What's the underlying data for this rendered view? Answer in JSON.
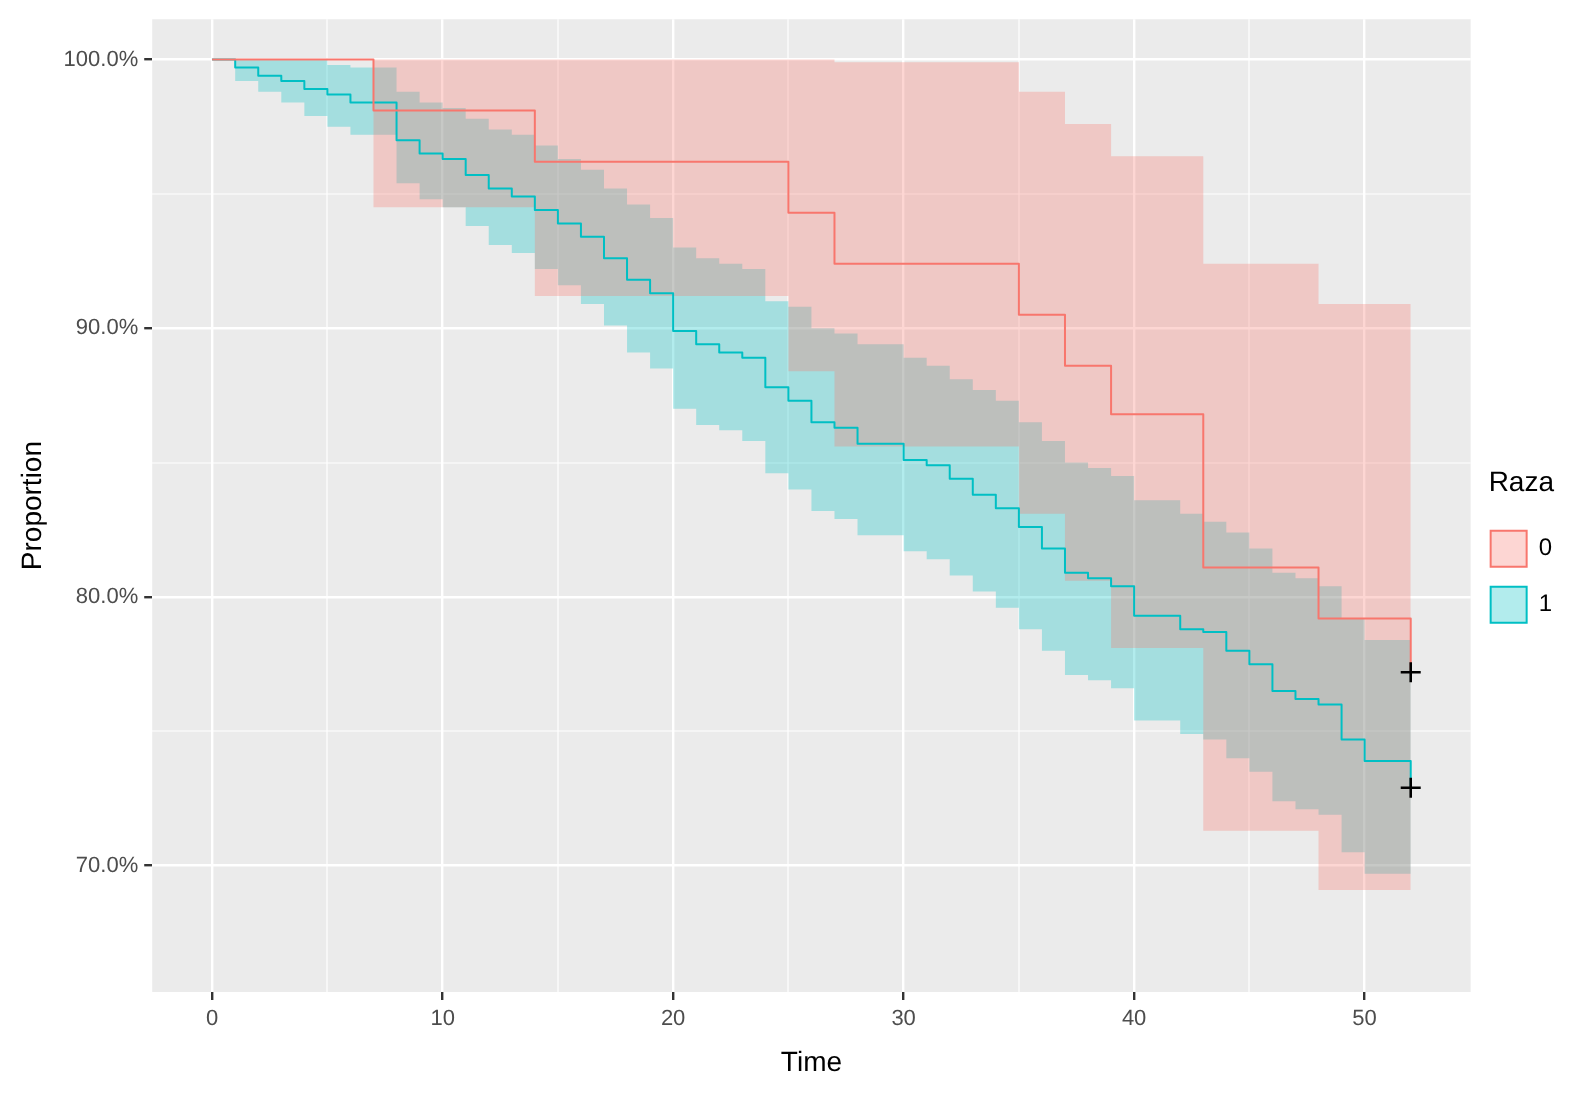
{
  "chart_data": {
    "type": "step",
    "xlabel": "Time",
    "ylabel": "Proportion",
    "legend_title": "Raza",
    "legend": "right",
    "grid": true,
    "xlim": [
      -2.6,
      54.6
    ],
    "ylim": [
      65.3,
      101.5
    ],
    "xticks": [
      0,
      {
        "value": 5,
        "label": null
      },
      10,
      {
        "value": 15,
        "label": null
      },
      20,
      {
        "value": 25,
        "label": null
      },
      30,
      {
        "value": 35,
        "label": null
      },
      40,
      {
        "value": 45,
        "label": null
      },
      50
    ],
    "yticks": [
      {
        "value": 70,
        "label": "70.0%"
      },
      {
        "value": 75,
        "label": null
      },
      {
        "value": 80,
        "label": "80.0%"
      },
      {
        "value": 85,
        "label": null
      },
      {
        "value": 90,
        "label": "90.0%"
      },
      {
        "value": 95,
        "label": null
      },
      {
        "value": 100,
        "label": "100.0%"
      }
    ],
    "series": [
      {
        "name": "0",
        "color": "#f8766d",
        "x": [
          0,
          7,
          14,
          25,
          27,
          35,
          37,
          39,
          43,
          48,
          52
        ],
        "values": [
          100,
          98.1,
          96.2,
          94.3,
          92.4,
          90.5,
          88.6,
          86.8,
          81.1,
          79.2,
          77.2
        ],
        "lower": [
          100,
          94.5,
          91.2,
          88.4,
          85.6,
          83.1,
          80.6,
          78.1,
          71.3,
          69.1,
          69.1
        ],
        "upper": [
          100,
          100,
          100,
          100,
          99.9,
          98.8,
          97.6,
          96.4,
          92.4,
          90.9,
          90.9
        ]
      },
      {
        "name": "1",
        "color": "#00bfc4",
        "x": [
          0,
          1,
          2,
          3,
          4,
          5,
          6,
          8,
          9,
          10,
          11,
          12,
          13,
          14,
          15,
          16,
          17,
          18,
          19,
          20,
          21,
          22,
          23,
          24,
          25,
          26,
          27,
          28,
          30,
          31,
          32,
          33,
          34,
          35,
          36,
          37,
          38,
          39,
          40,
          42,
          43,
          44,
          45,
          46,
          47,
          48,
          49,
          50,
          52
        ],
        "values": [
          100,
          99.7,
          99.4,
          99.2,
          98.9,
          98.7,
          98.4,
          97.0,
          96.5,
          96.3,
          95.7,
          95.2,
          94.9,
          94.4,
          93.9,
          93.4,
          92.6,
          91.8,
          91.3,
          89.9,
          89.4,
          89.1,
          88.9,
          87.8,
          87.3,
          86.5,
          86.3,
          85.7,
          85.1,
          84.9,
          84.4,
          83.8,
          83.3,
          82.6,
          81.8,
          80.9,
          80.7,
          80.4,
          79.3,
          78.8,
          78.7,
          78.0,
          77.5,
          76.5,
          76.2,
          76.0,
          74.7,
          73.9,
          72.9
        ],
        "lower": [
          100,
          99.2,
          98.8,
          98.4,
          97.9,
          97.5,
          97.2,
          95.4,
          94.8,
          94.5,
          93.8,
          93.1,
          92.8,
          92.2,
          91.6,
          90.9,
          90.1,
          89.1,
          88.5,
          87.0,
          86.4,
          86.2,
          85.8,
          84.6,
          84.0,
          83.2,
          82.9,
          82.3,
          81.7,
          81.4,
          80.8,
          80.2,
          79.6,
          78.8,
          78.0,
          77.1,
          76.9,
          76.6,
          75.4,
          74.9,
          74.7,
          74.0,
          73.5,
          72.4,
          72.1,
          71.9,
          70.5,
          69.7,
          69.7
        ],
        "upper": [
          100,
          100,
          100,
          100,
          100,
          99.8,
          99.7,
          98.8,
          98.4,
          98.2,
          97.8,
          97.4,
          97.2,
          96.8,
          96.3,
          95.9,
          95.2,
          94.6,
          94.1,
          93.0,
          92.6,
          92.4,
          92.2,
          91.0,
          90.8,
          90.0,
          89.8,
          89.4,
          88.9,
          88.6,
          88.1,
          87.7,
          87.3,
          86.5,
          85.8,
          85.0,
          84.8,
          84.5,
          83.6,
          83.1,
          82.8,
          82.4,
          81.8,
          80.9,
          80.7,
          80.4,
          79.2,
          78.4,
          78.4
        ]
      },
      {
        "type": "scatter",
        "marker": "cross",
        "color": "#000000",
        "x": [
          52,
          52
        ],
        "values": [
          77.2,
          72.9
        ]
      }
    ]
  }
}
